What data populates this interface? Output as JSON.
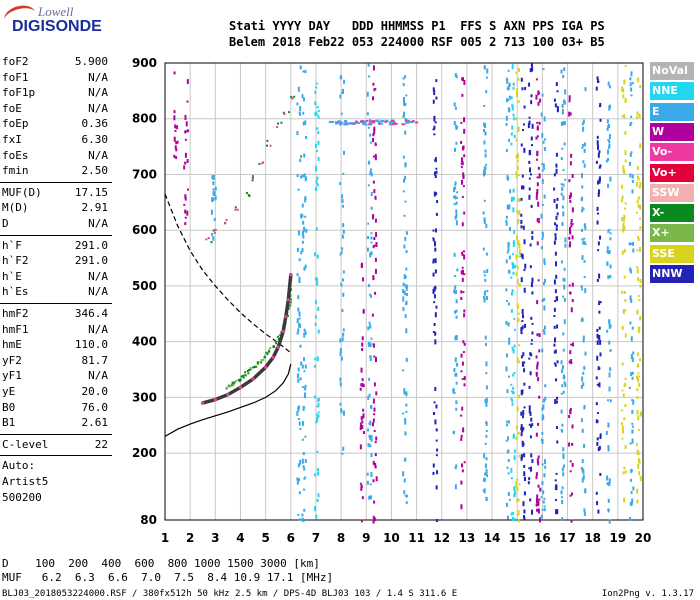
{
  "logo": {
    "line1": "Lowell",
    "line2": "DIGISONDE"
  },
  "header": {
    "line1": "Stati YYYY DAY   DDD HHMMSS P1  FFS S AXN PPS IGA PS",
    "line2": "Belem 2018 Feb22 053 224000 RSF 005 2 713 100 03+ B5"
  },
  "params": [
    {
      "k": "foF2",
      "v": "5.900"
    },
    {
      "k": "foF1",
      "v": "N/A"
    },
    {
      "k": "foF1p",
      "v": "N/A"
    },
    {
      "k": "foE",
      "v": "N/A"
    },
    {
      "k": "foEp",
      "v": "0.36"
    },
    {
      "k": "fxI",
      "v": "6.30"
    },
    {
      "k": "foEs",
      "v": "N/A"
    },
    {
      "k": "fmin",
      "v": "2.50"
    },
    {
      "k": "MUF(D)",
      "v": "17.15"
    },
    {
      "k": "M(D)",
      "v": "2.91"
    },
    {
      "k": "D",
      "v": "N/A"
    },
    {
      "k": "h`F",
      "v": "291.0"
    },
    {
      "k": "h`F2",
      "v": "291.0"
    },
    {
      "k": "h`E",
      "v": "N/A"
    },
    {
      "k": "h`Es",
      "v": "N/A"
    },
    {
      "k": "hmF2",
      "v": "346.4"
    },
    {
      "k": "hmF1",
      "v": "N/A"
    },
    {
      "k": "hmE",
      "v": "110.0"
    },
    {
      "k": "yF2",
      "v": "81.7"
    },
    {
      "k": "yF1",
      "v": "N/A"
    },
    {
      "k": "yE",
      "v": "20.0"
    },
    {
      "k": "B0",
      "v": "76.0"
    },
    {
      "k": "B1",
      "v": "2.61"
    },
    {
      "k": "C-level",
      "v": "22"
    },
    {
      "k": "Auto:",
      "v": ""
    },
    {
      "k": "Artist5",
      "v": ""
    },
    {
      "k": "500200",
      "v": ""
    }
  ],
  "legend": [
    {
      "label": "NoVal",
      "color": "#b4b4b4"
    },
    {
      "label": "NNE",
      "color": "#22d6f0"
    },
    {
      "label": "E",
      "color": "#3aa9ea"
    },
    {
      "label": "W",
      "color": "#b0009e"
    },
    {
      "label": "Vo-",
      "color": "#ee3aa0"
    },
    {
      "label": "Vo+",
      "color": "#e4003a"
    },
    {
      "label": "SSW",
      "color": "#f2b0b0"
    },
    {
      "label": "X-",
      "color": "#0a8a1e"
    },
    {
      "label": "X+",
      "color": "#7ab64a"
    },
    {
      "label": "SSE",
      "color": "#d8d41e"
    },
    {
      "label": "NNW",
      "color": "#2222b8"
    }
  ],
  "footer": {
    "row1": "D    100  200  400  600  800 1000 1500 3000 [km]",
    "row2": "MUF   6.2  6.3  6.6  7.0  7.5  8.4 10.9 17.1 [MHz]",
    "file_line": "BLJ03_2018053224000.RSF / 380fx512h 50 kHz 2.5 km / DPS-4D BLJ03 103 / 1.4 S 311.6 E",
    "version": "Ion2Png v. 1.3.17"
  },
  "chart_data": {
    "type": "scatter",
    "title": "",
    "xlabel": "",
    "ylabel": "",
    "xlim": [
      1,
      20
    ],
    "ylim": [
      80,
      900
    ],
    "x_ticks": [
      1,
      2,
      3,
      4,
      5,
      6,
      7,
      8,
      9,
      10,
      11,
      12,
      13,
      14,
      15,
      16,
      17,
      18,
      19,
      20
    ],
    "y_ticks": [
      80,
      200,
      300,
      400,
      500,
      600,
      700,
      800,
      900
    ],
    "grid": true,
    "trace_o": {
      "name": "",
      "color": "#3a3a3a",
      "points": [
        [
          2.5,
          290
        ],
        [
          3.0,
          296
        ],
        [
          3.5,
          305
        ],
        [
          4.0,
          318
        ],
        [
          4.5,
          333
        ],
        [
          5.0,
          354
        ],
        [
          5.3,
          372
        ],
        [
          5.5,
          390
        ],
        [
          5.7,
          418
        ],
        [
          5.8,
          445
        ],
        [
          5.9,
          475
        ],
        [
          6.0,
          520
        ]
      ]
    },
    "profile": {
      "color": "#000000",
      "points": [
        [
          1.0,
          230
        ],
        [
          1.5,
          243
        ],
        [
          2.0,
          252
        ],
        [
          2.5,
          260
        ],
        [
          3.0,
          267
        ],
        [
          3.5,
          274
        ],
        [
          4.0,
          282
        ],
        [
          4.5,
          290
        ],
        [
          5.0,
          300
        ],
        [
          5.4,
          312
        ],
        [
          5.7,
          326
        ],
        [
          5.9,
          342
        ],
        [
          6.0,
          360
        ]
      ]
    },
    "muf_curve": {
      "color": "#000000",
      "dash": true,
      "points": [
        [
          1.0,
          665
        ],
        [
          1.5,
          608
        ],
        [
          2.0,
          563
        ],
        [
          2.5,
          528
        ],
        [
          3.0,
          500
        ],
        [
          3.5,
          475
        ],
        [
          4.0,
          452
        ],
        [
          4.5,
          432
        ],
        [
          5.0,
          414
        ],
        [
          5.5,
          398
        ],
        [
          6.0,
          380
        ]
      ]
    },
    "green_x_trace": [
      [
        3.4,
        320
      ],
      [
        3.8,
        330
      ],
      [
        4.2,
        345
      ],
      [
        4.6,
        360
      ],
      [
        5.0,
        378
      ],
      [
        5.4,
        400
      ],
      [
        5.7,
        430
      ],
      [
        5.9,
        470
      ],
      [
        6.0,
        515
      ]
    ],
    "f_echo_2nd": [
      [
        2.7,
        585
      ],
      [
        3.0,
        600
      ],
      [
        3.4,
        615
      ],
      [
        3.8,
        640
      ],
      [
        4.2,
        665
      ],
      [
        4.5,
        695
      ],
      [
        4.8,
        725
      ],
      [
        5.1,
        758
      ],
      [
        5.5,
        790
      ],
      [
        5.8,
        815
      ],
      [
        6.0,
        840
      ]
    ],
    "es_blanket_height": 795,
    "noise_columns": [
      {
        "x": 1.4,
        "y0": 720,
        "y1": 890,
        "color": "#b0009e"
      },
      {
        "x": 1.8,
        "y0": 600,
        "y1": 880,
        "color": "#b0009e"
      },
      {
        "x": 2.9,
        "y0": 580,
        "y1": 760,
        "color": "#3aa9ea"
      },
      {
        "x": 6.3,
        "y0": 80,
        "y1": 900,
        "color": "#3aa9ea"
      },
      {
        "x": 6.5,
        "y0": 80,
        "y1": 900,
        "color": "#3aa9ea"
      },
      {
        "x": 7.0,
        "y0": 80,
        "y1": 880,
        "color": "#22d6f0"
      },
      {
        "x": 8.0,
        "y0": 200,
        "y1": 900,
        "color": "#3aa9ea"
      },
      {
        "x": 8.8,
        "y0": 80,
        "y1": 560,
        "color": "#b0009e"
      },
      {
        "x": 9.1,
        "y0": 100,
        "y1": 900,
        "color": "#3aa9ea"
      },
      {
        "x": 9.3,
        "y0": 80,
        "y1": 900,
        "color": "#b0009e"
      },
      {
        "x": 10.5,
        "y0": 80,
        "y1": 880,
        "color": "#3aa9ea"
      },
      {
        "x": 11.7,
        "y0": 80,
        "y1": 880,
        "color": "#2222b8"
      },
      {
        "x": 12.5,
        "y0": 120,
        "y1": 900,
        "color": "#3aa9ea"
      },
      {
        "x": 12.8,
        "y0": 100,
        "y1": 900,
        "color": "#b0009e"
      },
      {
        "x": 13.7,
        "y0": 100,
        "y1": 900,
        "color": "#3aa9ea"
      },
      {
        "x": 14.6,
        "y0": 80,
        "y1": 900,
        "color": "#3aa9ea"
      },
      {
        "x": 14.8,
        "y0": 80,
        "y1": 900,
        "color": "#22d6f0"
      },
      {
        "x": 15.0,
        "y0": 80,
        "y1": 900,
        "color": "#d8d41e"
      },
      {
        "x": 15.2,
        "y0": 80,
        "y1": 900,
        "color": "#2222b8"
      },
      {
        "x": 15.5,
        "y0": 80,
        "y1": 900,
        "color": "#2222b8"
      },
      {
        "x": 15.8,
        "y0": 80,
        "y1": 900,
        "color": "#b0009e"
      },
      {
        "x": 16.0,
        "y0": 80,
        "y1": 900,
        "color": "#3aa9ea"
      },
      {
        "x": 16.5,
        "y0": 80,
        "y1": 900,
        "color": "#2222b8"
      },
      {
        "x": 16.8,
        "y0": 80,
        "y1": 900,
        "color": "#3aa9ea"
      },
      {
        "x": 17.1,
        "y0": 80,
        "y1": 880,
        "color": "#b0009e"
      },
      {
        "x": 17.6,
        "y0": 80,
        "y1": 880,
        "color": "#3aa9ea"
      },
      {
        "x": 18.2,
        "y0": 80,
        "y1": 880,
        "color": "#2222b8"
      },
      {
        "x": 18.6,
        "y0": 80,
        "y1": 880,
        "color": "#3aa9ea"
      },
      {
        "x": 19.2,
        "y0": 100,
        "y1": 900,
        "color": "#d8d41e"
      },
      {
        "x": 19.5,
        "y0": 80,
        "y1": 900,
        "color": "#3aa9ea"
      },
      {
        "x": 19.8,
        "y0": 100,
        "y1": 900,
        "color": "#d8d41e"
      }
    ]
  }
}
